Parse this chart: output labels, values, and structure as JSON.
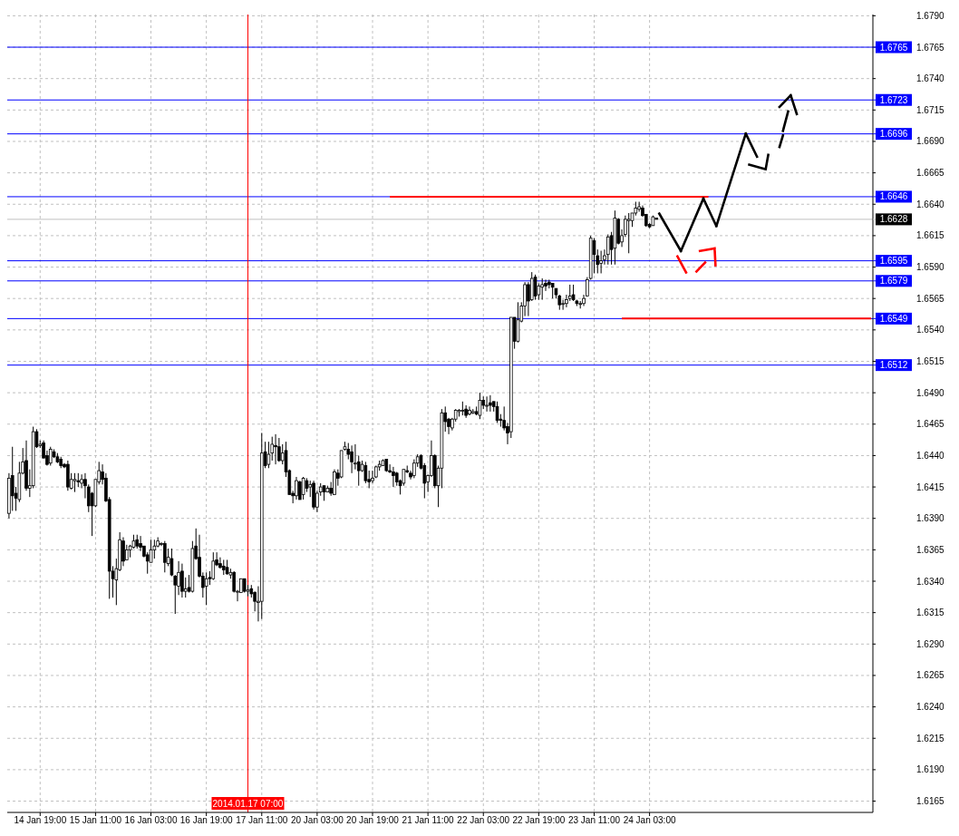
{
  "chart_data": {
    "type": "candlestick",
    "categories": [
      null,
      null,
      null,
      null,
      null,
      null,
      null,
      null,
      null,
      "14 Jan 19:00",
      null,
      null,
      null,
      null,
      null,
      null,
      null,
      null,
      null,
      null,
      null,
      null,
      null,
      null,
      null,
      "15 Jan 11:00",
      null,
      null,
      null,
      null,
      null,
      null,
      null,
      null,
      null,
      null,
      null,
      null,
      null,
      null,
      null,
      "16 Jan 03:00",
      null,
      null,
      null,
      null,
      null,
      null,
      null,
      null,
      null,
      null,
      null,
      null,
      null,
      null,
      null,
      "16 Jan 19:00",
      null,
      null,
      null,
      null,
      null,
      null,
      null,
      null,
      null,
      null,
      null,
      "2014.01.17 07:00",
      null,
      null,
      null,
      "17 Jan 11:00",
      null,
      null,
      null,
      null,
      null,
      null,
      null,
      null,
      null,
      null,
      null,
      null,
      null,
      null,
      null,
      "20 Jan 03:00",
      null,
      null,
      null,
      null,
      null,
      null,
      null,
      null,
      null,
      null,
      null,
      null,
      null,
      null,
      null,
      "20 Jan 19:00",
      null,
      null,
      null,
      null,
      null,
      null,
      null,
      null,
      null,
      null,
      null,
      null,
      null,
      null,
      null,
      "21 Jan 11:00",
      null,
      null,
      null,
      null,
      null,
      null,
      null,
      null,
      null,
      null,
      null,
      null,
      null,
      null,
      null,
      "22 Jan 03:00",
      null,
      null,
      null,
      null,
      null,
      null,
      null,
      null,
      null,
      null,
      null,
      null,
      null,
      null,
      null,
      "22 Jan 19:00",
      null,
      null,
      null,
      null,
      null,
      null,
      null,
      null,
      null,
      null,
      null,
      null,
      null,
      null,
      null,
      "23 Jan 11:00",
      null,
      null,
      null,
      null,
      null,
      null,
      null,
      null,
      null,
      null,
      null,
      null,
      null,
      null,
      null,
      "24 Jan 03:00",
      null,
      null,
      null,
      null,
      null,
      null,
      null,
      null,
      null,
      null,
      null,
      null,
      null,
      null,
      null,
      null,
      null,
      null,
      null,
      null,
      null,
      null,
      null,
      null,
      null,
      null,
      null,
      null,
      null,
      null,
      null,
      null,
      null,
      null,
      null,
      null,
      null,
      null,
      null,
      null,
      null,
      null,
      null,
      null,
      null,
      null,
      null,
      null,
      null,
      null,
      null,
      null,
      null,
      null,
      null,
      null,
      null,
      null,
      null,
      null,
      null,
      null,
      null,
      null
    ],
    "ohlc": [
      [
        1.6394,
        1.6426,
        1.639,
        1.6422
      ],
      [
        1.6424,
        1.6447,
        1.6396,
        1.6408
      ],
      [
        1.641,
        1.6415,
        1.6396,
        1.6406
      ],
      [
        1.6405,
        1.6435,
        1.6403,
        1.6426
      ],
      [
        1.6426,
        1.6446,
        1.6425,
        1.6435
      ],
      [
        1.6436,
        1.6452,
        1.6412,
        1.6414
      ],
      [
        1.6414,
        1.6429,
        1.6407,
        1.6416
      ],
      [
        1.6416,
        1.6463,
        1.6414,
        1.6459
      ],
      [
        1.6459,
        1.6461,
        1.6446,
        1.6447
      ],
      [
        1.6448,
        1.6452,
        1.6446,
        1.6449
      ],
      [
        1.645,
        1.6452,
        1.6438,
        1.6438
      ],
      [
        1.644,
        1.6444,
        1.6432,
        1.6433
      ],
      [
        1.6434,
        1.6447,
        1.6432,
        1.6445
      ],
      [
        1.6443,
        1.6445,
        1.6438,
        1.6439
      ],
      [
        1.6439,
        1.6442,
        1.6434,
        1.6435
      ],
      [
        1.6437,
        1.6439,
        1.643,
        1.6432
      ],
      [
        1.6433,
        1.6434,
        1.643,
        1.6431
      ],
      [
        1.6433,
        1.6436,
        1.6412,
        1.6415
      ],
      [
        1.6414,
        1.6426,
        1.6413,
        1.6421
      ],
      [
        1.642,
        1.6426,
        1.6411,
        1.6421
      ],
      [
        1.642,
        1.6426,
        1.6415,
        1.6419
      ],
      [
        1.6418,
        1.6425,
        1.6414,
        1.6421
      ],
      [
        1.6421,
        1.6426,
        1.6406,
        1.6416
      ],
      [
        1.6415,
        1.6417,
        1.6395,
        1.64
      ],
      [
        1.641,
        1.6411,
        1.6376,
        1.64
      ],
      [
        1.64,
        1.6421,
        1.6399,
        1.6421
      ],
      [
        1.6419,
        1.6435,
        1.6417,
        1.6428
      ],
      [
        1.6427,
        1.6433,
        1.6417,
        1.6421
      ],
      [
        1.6422,
        1.6426,
        1.6403,
        1.6404
      ],
      [
        1.6405,
        1.6407,
        1.6326,
        1.6348
      ],
      [
        1.6348,
        1.6352,
        1.6327,
        1.6342
      ],
      [
        1.6341,
        1.6358,
        1.6321,
        1.635
      ],
      [
        1.6349,
        1.6379,
        1.6348,
        1.6373
      ],
      [
        1.6372,
        1.6375,
        1.6352,
        1.6356
      ],
      [
        1.6357,
        1.6369,
        1.6357,
        1.6365
      ],
      [
        1.6365,
        1.6369,
        1.6359,
        1.6368
      ],
      [
        1.6367,
        1.6377,
        1.6366,
        1.6372
      ],
      [
        1.6373,
        1.6377,
        1.6366,
        1.6368
      ],
      [
        1.637,
        1.6376,
        1.6364,
        1.6367
      ],
      [
        1.6368,
        1.6368,
        1.6359,
        1.636
      ],
      [
        1.6361,
        1.6363,
        1.6346,
        1.6356
      ],
      [
        1.6355,
        1.6373,
        1.6355,
        1.6365
      ],
      [
        1.6365,
        1.6373,
        1.6358,
        1.6368
      ],
      [
        1.6368,
        1.6375,
        1.6367,
        1.6372
      ],
      [
        1.637,
        1.6371,
        1.6368,
        1.637
      ],
      [
        1.637,
        1.6372,
        1.6347,
        1.6355
      ],
      [
        1.6354,
        1.6366,
        1.6352,
        1.6359
      ],
      [
        1.6358,
        1.6366,
        1.6344,
        1.6345
      ],
      [
        1.6344,
        1.6345,
        1.6314,
        1.6337
      ],
      [
        1.6336,
        1.6356,
        1.6329,
        1.6347
      ],
      [
        1.6348,
        1.6354,
        1.6327,
        1.6332
      ],
      [
        1.6332,
        1.6343,
        1.6327,
        1.6334
      ],
      [
        1.6335,
        1.6345,
        1.6331,
        1.6332
      ],
      [
        1.6332,
        1.6372,
        1.6331,
        1.6366
      ],
      [
        1.6368,
        1.6382,
        1.6357,
        1.6358
      ],
      [
        1.6359,
        1.6377,
        1.6343,
        1.6344
      ],
      [
        1.6344,
        1.6347,
        1.6327,
        1.6335
      ],
      [
        1.6336,
        1.6347,
        1.6321,
        1.6342
      ],
      [
        1.6343,
        1.6348,
        1.6337,
        1.6342
      ],
      [
        1.6342,
        1.6363,
        1.6341,
        1.6356
      ],
      [
        1.6357,
        1.6363,
        1.6352,
        1.6353
      ],
      [
        1.6354,
        1.6359,
        1.635,
        1.6351
      ],
      [
        1.6352,
        1.6357,
        1.6345,
        1.6349
      ],
      [
        1.6351,
        1.6357,
        1.6345,
        1.6346
      ],
      [
        1.6345,
        1.635,
        1.6342,
        1.6347
      ],
      [
        1.6347,
        1.6348,
        1.6331,
        1.6332
      ],
      [
        1.6332,
        1.6333,
        1.6324,
        1.6332
      ],
      [
        1.6331,
        1.6342,
        1.6331,
        1.6342
      ],
      [
        1.6342,
        1.6342,
        1.6331,
        1.6332
      ],
      [
        1.6332,
        1.6337,
        1.6328,
        1.6333
      ],
      [
        1.6334,
        1.6337,
        1.6327,
        1.633
      ],
      [
        1.6331,
        1.6332,
        1.6316,
        1.6324
      ],
      [
        1.6323,
        1.6336,
        1.6308,
        1.6324
      ],
      [
        1.6324,
        1.6458,
        1.631,
        1.6442
      ],
      [
        1.6443,
        1.6451,
        1.643,
        1.6432
      ],
      [
        1.6433,
        1.6451,
        1.643,
        1.6441
      ],
      [
        1.6442,
        1.6455,
        1.6436,
        1.6449
      ],
      [
        1.6448,
        1.6457,
        1.6433,
        1.6447
      ],
      [
        1.6447,
        1.6454,
        1.6435,
        1.6436
      ],
      [
        1.6436,
        1.6449,
        1.6433,
        1.6442
      ],
      [
        1.6444,
        1.6451,
        1.6423,
        1.6427
      ],
      [
        1.6428,
        1.6429,
        1.6409,
        1.6409
      ],
      [
        1.641,
        1.6412,
        1.6402,
        1.6408
      ],
      [
        1.6408,
        1.6423,
        1.6405,
        1.642
      ],
      [
        1.6419,
        1.642,
        1.6405,
        1.6405
      ],
      [
        1.6409,
        1.6423,
        1.6405,
        1.6422
      ],
      [
        1.642,
        1.6422,
        1.6411,
        1.6414
      ],
      [
        1.6415,
        1.642,
        1.6407,
        1.6417
      ],
      [
        1.6418,
        1.642,
        1.6397,
        1.6399
      ],
      [
        1.6399,
        1.6412,
        1.6395,
        1.641
      ],
      [
        1.6411,
        1.6418,
        1.6408,
        1.6415
      ],
      [
        1.6416,
        1.6416,
        1.6404,
        1.6411
      ],
      [
        1.6411,
        1.6416,
        1.6411,
        1.6414
      ],
      [
        1.6414,
        1.6419,
        1.6408,
        1.641
      ],
      [
        1.6409,
        1.6429,
        1.6409,
        1.6427
      ],
      [
        1.6426,
        1.6429,
        1.6416,
        1.6422
      ],
      [
        1.6423,
        1.6444,
        1.6422,
        1.6444
      ],
      [
        1.6445,
        1.6451,
        1.6444,
        1.6447
      ],
      [
        1.6445,
        1.645,
        1.6437,
        1.6441
      ],
      [
        1.6443,
        1.6448,
        1.6426,
        1.6435
      ],
      [
        1.6434,
        1.6449,
        1.6429,
        1.6434
      ],
      [
        1.6435,
        1.644,
        1.6416,
        1.6428
      ],
      [
        1.6428,
        1.6436,
        1.6427,
        1.6433
      ],
      [
        1.6432,
        1.6435,
        1.6418,
        1.642
      ],
      [
        1.6421,
        1.6428,
        1.6414,
        1.6419
      ],
      [
        1.642,
        1.6428,
        1.6418,
        1.6422
      ],
      [
        1.6423,
        1.6432,
        1.6422,
        1.6431
      ],
      [
        1.6431,
        1.6436,
        1.6428,
        1.6433
      ],
      [
        1.6432,
        1.6437,
        1.6432,
        1.6436
      ],
      [
        1.6437,
        1.6437,
        1.6427,
        1.6428
      ],
      [
        1.6428,
        1.6433,
        1.6426,
        1.6427
      ],
      [
        1.6427,
        1.6431,
        1.6415,
        1.6424
      ],
      [
        1.6426,
        1.6427,
        1.6416,
        1.6419
      ],
      [
        1.642,
        1.6421,
        1.6409,
        1.6416
      ],
      [
        1.6418,
        1.6429,
        1.6416,
        1.6429
      ],
      [
        1.6428,
        1.6432,
        1.6426,
        1.6427
      ],
      [
        1.6426,
        1.6428,
        1.6421,
        1.6423
      ],
      [
        1.6424,
        1.6437,
        1.6422,
        1.6434
      ],
      [
        1.6434,
        1.6441,
        1.6431,
        1.6439
      ],
      [
        1.644,
        1.6441,
        1.6429,
        1.643
      ],
      [
        1.6432,
        1.6434,
        1.6406,
        1.6418
      ],
      [
        1.6419,
        1.6425,
        1.6411,
        1.6424
      ],
      [
        1.6424,
        1.6452,
        1.6423,
        1.644
      ],
      [
        1.644,
        1.6441,
        1.6414,
        1.6416
      ],
      [
        1.6416,
        1.6432,
        1.6399,
        1.643
      ],
      [
        1.643,
        1.6477,
        1.6414,
        1.6474
      ],
      [
        1.6474,
        1.6479,
        1.6459,
        1.6467
      ],
      [
        1.6469,
        1.647,
        1.6457,
        1.6463
      ],
      [
        1.6462,
        1.647,
        1.646,
        1.6469
      ],
      [
        1.6469,
        1.6477,
        1.6467,
        1.6476
      ],
      [
        1.6475,
        1.6477,
        1.6471,
        1.6476
      ],
      [
        1.6476,
        1.6483,
        1.6472,
        1.6476
      ],
      [
        1.6477,
        1.648,
        1.647,
        1.6472
      ],
      [
        1.6473,
        1.6479,
        1.6472,
        1.6476
      ],
      [
        1.6474,
        1.6477,
        1.6473,
        1.6475
      ],
      [
        1.6475,
        1.6479,
        1.6472,
        1.6473
      ],
      [
        1.6472,
        1.649,
        1.6469,
        1.6484
      ],
      [
        1.6484,
        1.6487,
        1.6477,
        1.648
      ],
      [
        1.648,
        1.6487,
        1.6475,
        1.648
      ],
      [
        1.6482,
        1.6488,
        1.6475,
        1.648
      ],
      [
        1.6483,
        1.6483,
        1.6475,
        1.6479
      ],
      [
        1.6479,
        1.6483,
        1.6466,
        1.6468
      ],
      [
        1.6469,
        1.6473,
        1.6463,
        1.6468
      ],
      [
        1.6468,
        1.6479,
        1.646,
        1.6462
      ],
      [
        1.6463,
        1.6466,
        1.6449,
        1.6458
      ],
      [
        1.6459,
        1.655,
        1.6454,
        1.655
      ],
      [
        1.655,
        1.655,
        1.6525,
        1.6531
      ],
      [
        1.6531,
        1.6562,
        1.653,
        1.6548
      ],
      [
        1.6547,
        1.6562,
        1.6546,
        1.6559
      ],
      [
        1.6559,
        1.6578,
        1.6551,
        1.6576
      ],
      [
        1.6576,
        1.6578,
        1.6551,
        1.6563
      ],
      [
        1.6564,
        1.6586,
        1.6563,
        1.6581
      ],
      [
        1.6582,
        1.6584,
        1.6564,
        1.6567
      ],
      [
        1.6568,
        1.6577,
        1.6564,
        1.6575
      ],
      [
        1.6574,
        1.6581,
        1.6564,
        1.6576
      ],
      [
        1.6577,
        1.658,
        1.6571,
        1.6575
      ],
      [
        1.6578,
        1.658,
        1.6573,
        1.6576
      ],
      [
        1.6577,
        1.6577,
        1.6565,
        1.6574
      ],
      [
        1.6573,
        1.6573,
        1.6565,
        1.6568
      ],
      [
        1.6567,
        1.6568,
        1.6556,
        1.656
      ],
      [
        1.6561,
        1.6564,
        1.6556,
        1.6561
      ],
      [
        1.6561,
        1.6568,
        1.6558,
        1.6564
      ],
      [
        1.6565,
        1.6576,
        1.6563,
        1.6567
      ],
      [
        1.6568,
        1.6576,
        1.6563,
        1.6564
      ],
      [
        1.6563,
        1.6564,
        1.6559,
        1.6561
      ],
      [
        1.6561,
        1.6563,
        1.6557,
        1.6561
      ],
      [
        1.6561,
        1.6568,
        1.6559,
        1.6565
      ],
      [
        1.6567,
        1.6582,
        1.6567,
        1.658
      ],
      [
        1.6581,
        1.6615,
        1.658,
        1.6613
      ],
      [
        1.6611,
        1.6613,
        1.6585,
        1.66
      ],
      [
        1.6599,
        1.6604,
        1.6585,
        1.6592
      ],
      [
        1.6593,
        1.6603,
        1.6585,
        1.6595
      ],
      [
        1.6596,
        1.6604,
        1.6592,
        1.6599
      ],
      [
        1.66,
        1.6616,
        1.6592,
        1.6614
      ],
      [
        1.6615,
        1.6618,
        1.6592,
        1.6604
      ],
      [
        1.6605,
        1.6635,
        1.6592,
        1.6629
      ],
      [
        1.6628,
        1.6629,
        1.6608,
        1.6609
      ],
      [
        1.661,
        1.662,
        1.6606,
        1.6615
      ],
      [
        1.6616,
        1.6631,
        1.6614,
        1.6628
      ],
      [
        1.6627,
        1.6633,
        1.6601,
        1.6628
      ],
      [
        1.6627,
        1.6633,
        1.6622,
        1.6633
      ],
      [
        1.6633,
        1.6642,
        1.6631,
        1.6637
      ],
      [
        1.6636,
        1.6642,
        1.6634,
        1.6638
      ],
      [
        1.6637,
        1.6639,
        1.663,
        1.6631
      ],
      [
        1.6632,
        1.6632,
        1.6622,
        1.6623
      ],
      [
        1.6624,
        1.6625,
        1.6621,
        1.6622
      ],
      [
        1.6623,
        1.6631,
        1.6623,
        1.663
      ],
      [
        1.6629,
        1.6629,
        1.6628,
        1.6628
      ],
      null,
      null,
      null,
      null,
      null,
      null,
      null,
      null,
      null,
      null,
      null,
      null,
      null,
      null,
      null,
      null,
      null,
      null,
      null,
      null,
      null,
      null,
      null,
      null,
      null,
      null,
      null,
      null,
      null,
      null,
      null,
      null,
      null,
      null,
      null,
      null,
      null,
      null,
      null,
      null,
      null,
      null,
      null,
      null,
      null,
      null,
      null,
      null,
      null,
      null,
      null,
      null,
      null,
      null,
      null,
      null,
      null,
      null,
      null,
      null,
      null,
      null
    ],
    "series": [
      {
        "type": "line",
        "color": "#ff0000",
        "values": [
          null,
          null,
          null,
          null,
          null,
          null,
          null,
          null,
          null,
          null,
          null,
          null,
          null,
          null,
          null,
          null,
          null,
          null,
          null,
          null,
          null,
          null,
          null,
          null,
          null,
          null,
          null,
          null,
          null,
          null,
          null,
          null,
          null,
          null,
          null,
          null,
          null,
          null,
          null,
          null,
          null,
          null,
          null,
          null,
          null,
          null,
          null,
          null,
          null,
          null,
          null,
          null,
          null,
          null,
          null,
          null,
          null,
          null,
          null,
          null,
          null,
          null,
          null,
          null,
          null,
          null,
          null,
          null,
          null,
          null,
          null,
          null,
          null,
          null,
          null,
          null,
          null,
          null,
          null,
          null,
          null,
          null,
          null,
          null,
          null,
          null,
          null,
          null,
          null,
          null,
          null,
          null,
          null,
          null,
          null,
          null,
          null,
          null,
          null,
          null,
          null,
          null,
          null,
          null,
          null,
          null,
          null,
          null,
          null,
          null,
          1.6646,
          1.6646,
          1.6646,
          1.6646,
          1.6646,
          1.6646,
          1.6646,
          1.6646,
          1.6646,
          1.6646,
          1.6646,
          1.6646,
          1.6646,
          1.6646,
          1.6646,
          1.6646,
          1.6646,
          1.6646,
          1.6646,
          1.6646,
          1.6646,
          1.6646,
          1.6646,
          1.6646,
          1.6646,
          1.6646,
          1.6646,
          1.6646,
          1.6646,
          1.6646,
          1.6646,
          1.6646,
          1.6646,
          1.6646,
          1.6646,
          1.6646,
          1.6646,
          1.6646,
          1.6646,
          1.6646,
          1.6646,
          1.6646,
          1.6646,
          1.6646,
          1.6646,
          1.6646,
          1.6646,
          1.6646,
          1.6646,
          1.6646,
          1.6646,
          1.6646,
          1.6646,
          1.6646,
          1.6646,
          1.6646,
          1.6646,
          1.6646,
          1.6646,
          1.6646,
          1.6646,
          1.6646,
          1.6646,
          1.6646,
          1.6646,
          1.6646,
          1.6646,
          1.6646,
          1.6646,
          1.6646,
          1.6646,
          1.6646,
          1.6646,
          1.6646,
          1.6646,
          1.6646,
          1.6646,
          1.6646,
          1.6646,
          1.6646,
          1.6646,
          1.6646,
          1.6646,
          1.6646,
          1.6646,
          1.6646,
          1.6646,
          1.6646,
          1.6646,
          1.6646,
          1.6646,
          1.6646,
          1.6646,
          null,
          null,
          null,
          null,
          null,
          null,
          null,
          null,
          null,
          null,
          null,
          null,
          null,
          null,
          null,
          null,
          null,
          null,
          null,
          null,
          null,
          null,
          null,
          null,
          null,
          null,
          null,
          null,
          null,
          null,
          null,
          null,
          null,
          null,
          null,
          null,
          null,
          null,
          null,
          null,
          null,
          null,
          null,
          null,
          null,
          null,
          null
        ]
      },
      {
        "type": "line",
        "color": "#ff0000",
        "values": [
          null,
          null,
          null,
          null,
          null,
          null,
          null,
          null,
          null,
          null,
          null,
          null,
          null,
          null,
          null,
          null,
          null,
          null,
          null,
          null,
          null,
          null,
          null,
          null,
          null,
          null,
          null,
          null,
          null,
          null,
          null,
          null,
          null,
          null,
          null,
          null,
          null,
          null,
          null,
          null,
          null,
          null,
          null,
          null,
          null,
          null,
          null,
          null,
          null,
          null,
          null,
          null,
          null,
          null,
          null,
          null,
          null,
          null,
          null,
          null,
          null,
          null,
          null,
          null,
          null,
          null,
          null,
          null,
          null,
          null,
          null,
          null,
          null,
          null,
          null,
          null,
          null,
          null,
          null,
          null,
          null,
          null,
          null,
          null,
          null,
          null,
          null,
          null,
          null,
          null,
          null,
          null,
          null,
          null,
          null,
          null,
          null,
          null,
          null,
          null,
          null,
          null,
          null,
          null,
          null,
          null,
          null,
          null,
          null,
          null,
          null,
          null,
          null,
          null,
          null,
          null,
          null,
          null,
          null,
          null,
          null,
          null,
          null,
          null,
          null,
          null,
          null,
          null,
          null,
          null,
          null,
          null,
          null,
          null,
          null,
          null,
          null,
          null,
          null,
          null,
          null,
          null,
          null,
          null,
          null,
          null,
          null,
          null,
          null,
          null,
          null,
          null,
          null,
          null,
          null,
          null,
          null,
          null,
          null,
          null,
          null,
          null,
          null,
          null,
          null,
          null,
          null,
          null,
          null,
          null,
          null,
          null,
          null,
          null,
          null,
          null,
          null,
          1.6549,
          1.6549,
          1.6549,
          1.6549,
          1.6549,
          1.6549,
          1.6549,
          1.6549,
          1.6549,
          1.6549,
          1.6549,
          1.6549,
          1.6549,
          1.6549,
          1.6549,
          1.6549,
          1.6549,
          1.6549,
          1.6549,
          1.6549,
          1.6549,
          1.6549,
          1.6549,
          1.6549,
          1.6549,
          1.6549,
          1.6549,
          1.6549,
          1.6549,
          1.6549,
          1.6549,
          1.6549,
          1.6549,
          1.6549,
          1.6549,
          1.6549,
          1.6549,
          1.6549,
          1.6549,
          1.6549,
          1.6549,
          1.6549,
          1.6549,
          1.6549,
          1.6549,
          1.6549,
          1.6549,
          1.6549,
          1.6549,
          1.6549,
          1.6549,
          1.6549,
          1.6549,
          1.6549,
          1.6549,
          1.6549,
          1.6549,
          1.6549,
          1.6549,
          1.6549,
          1.6549,
          1.6549,
          1.6549,
          1.6549,
          1.6549,
          1.6549,
          1.6549,
          1.6549,
          1.6549,
          1.6549,
          1.6549,
          1.6549,
          1.6549
        ]
      }
    ],
    "ylim": [
      1.6156,
      1.6791
    ],
    "yticks": [
      1.6165,
      {
        "value": 1.619,
        "label": "1.6190"
      },
      1.6215,
      {
        "value": 1.624,
        "label": "1.6240"
      },
      1.6265,
      {
        "value": 1.629,
        "label": "1.6290"
      },
      1.6315,
      {
        "value": 1.634,
        "label": "1.6340"
      },
      1.6365,
      {
        "value": 1.639,
        "label": "1.6390"
      },
      1.6415,
      {
        "value": 1.644,
        "label": "1.6440"
      },
      1.6465,
      {
        "value": 1.649,
        "label": "1.6490"
      },
      1.6515,
      {
        "value": 1.654,
        "label": "1.6540"
      },
      1.6565,
      {
        "value": 1.659,
        "label": "1.6590"
      },
      1.6615,
      {
        "value": 1.664,
        "label": "1.6640"
      },
      1.6665,
      {
        "value": 1.669,
        "label": "1.6690"
      },
      1.6715,
      {
        "value": 1.674,
        "label": "1.6740"
      },
      1.6765,
      {
        "value": 1.679,
        "label": "1.6790"
      }
    ],
    "grid": true,
    "ref_lines": [
      {
        "axis": "y",
        "value": 1.6765,
        "label": "1.6765",
        "color": "#0000ff"
      },
      {
        "axis": "y",
        "value": 1.6723,
        "label": "1.6723",
        "color": "#0000ff"
      },
      {
        "axis": "y",
        "value": 1.6696,
        "label": "1.6696",
        "color": "#0000ff"
      },
      {
        "axis": "y",
        "value": 1.6646,
        "label": "1.6646",
        "color": "#0000ff"
      },
      {
        "axis": "y",
        "value": 1.6628,
        "label": "1.6628",
        "color": "#c0c0c0"
      },
      {
        "axis": "y",
        "value": 1.6595,
        "label": "1.6595",
        "color": "#0000ff"
      },
      {
        "axis": "y",
        "value": 1.6579,
        "label": "1.6579",
        "color": "#0000ff"
      },
      {
        "axis": "y",
        "value": 1.6549,
        "label": "1.6549",
        "color": "#0000ff"
      },
      {
        "axis": "y",
        "value": 1.6512,
        "label": "1.6512",
        "color": "#0000ff"
      },
      {
        "axis": "x",
        "value": "2014.01.17 07:00",
        "color": "#ff0000"
      }
    ]
  }
}
